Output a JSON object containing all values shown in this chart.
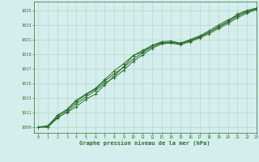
{
  "bg_color": "#d4eeed",
  "grid_color": "#c0d8d0",
  "line_color": "#2d6e2d",
  "title": "Graphe pression niveau de la mer (hPa)",
  "ylabel_vals": [
    1009,
    1011,
    1013,
    1015,
    1017,
    1019,
    1021,
    1023,
    1025
  ],
  "xlim": [
    -0.5,
    23
  ],
  "ylim": [
    1008.2,
    1026.2
  ],
  "series": [
    [
      1009.0,
      1009.0,
      1010.3,
      1011.0,
      1011.8,
      1012.8,
      1013.5,
      1014.8,
      1016.0,
      1017.3,
      1018.8,
      1019.3,
      1020.2,
      1020.6,
      1020.6,
      1020.5,
      1020.8,
      1021.4,
      1022.0,
      1022.8,
      1023.5,
      1024.5,
      1025.0,
      1025.3
    ],
    [
      1009.0,
      1009.0,
      1010.2,
      1011.1,
      1012.2,
      1013.1,
      1014.0,
      1015.0,
      1015.8,
      1016.8,
      1018.0,
      1018.9,
      1019.8,
      1020.4,
      1020.5,
      1020.3,
      1020.7,
      1021.2,
      1021.8,
      1022.5,
      1023.2,
      1024.0,
      1024.6,
      1025.1
    ],
    [
      1009.0,
      1009.2,
      1010.6,
      1011.4,
      1012.7,
      1013.5,
      1014.3,
      1015.5,
      1016.7,
      1017.7,
      1018.8,
      1019.5,
      1020.2,
      1020.7,
      1020.8,
      1020.5,
      1021.0,
      1021.5,
      1022.2,
      1023.0,
      1023.7,
      1024.3,
      1024.9,
      1025.3
    ],
    [
      1009.0,
      1009.0,
      1010.5,
      1011.3,
      1012.5,
      1013.4,
      1014.2,
      1015.3,
      1016.3,
      1017.2,
      1018.3,
      1019.2,
      1020.0,
      1020.5,
      1020.6,
      1020.4,
      1020.9,
      1021.3,
      1022.0,
      1022.7,
      1023.4,
      1024.2,
      1024.8,
      1025.2
    ]
  ],
  "x_ticks": [
    0,
    1,
    2,
    3,
    4,
    5,
    6,
    7,
    8,
    9,
    10,
    11,
    12,
    13,
    14,
    15,
    16,
    17,
    18,
    19,
    20,
    21,
    22,
    23
  ],
  "figsize": [
    3.2,
    2.0
  ],
  "dpi": 100
}
